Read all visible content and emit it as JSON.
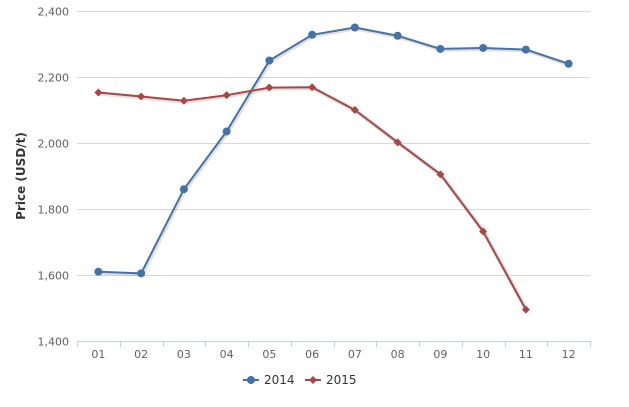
{
  "chart_data": {
    "type": "line",
    "title": "",
    "xlabel": "",
    "ylabel": "Price (USD/t)",
    "categories": [
      "01",
      "02",
      "03",
      "04",
      "05",
      "06",
      "07",
      "08",
      "09",
      "10",
      "11",
      "12"
    ],
    "ylim": [
      1400,
      2400
    ],
    "yticks": [
      "1,400",
      "1,600",
      "1,800",
      "2,000",
      "2,200",
      "2,400"
    ],
    "ytick_values": [
      1400,
      1600,
      1800,
      2000,
      2200,
      2400
    ],
    "grid": true,
    "legend_position": "bottom-center",
    "series": [
      {
        "name": "2014",
        "color": "#4572A7",
        "marker": "circle",
        "values": [
          1610,
          1605,
          1860,
          2035,
          2250,
          2328,
          2350,
          2325,
          2285,
          2288,
          2283,
          2240
        ]
      },
      {
        "name": "2015",
        "color": "#AA4643",
        "marker": "diamond",
        "values": [
          2153,
          2141,
          2128,
          2145,
          2168,
          2169,
          2100,
          2002,
          1905,
          1732,
          1495,
          null
        ]
      }
    ]
  }
}
